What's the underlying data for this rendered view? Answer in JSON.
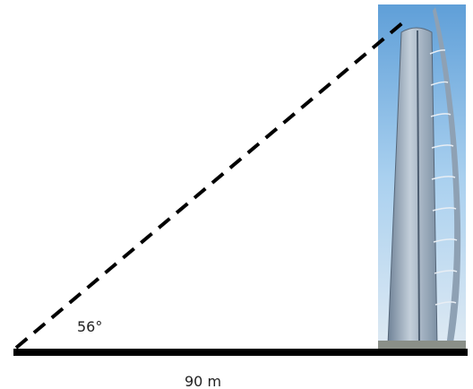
{
  "angle_label": "56°",
  "base_label": "90 m"
}
